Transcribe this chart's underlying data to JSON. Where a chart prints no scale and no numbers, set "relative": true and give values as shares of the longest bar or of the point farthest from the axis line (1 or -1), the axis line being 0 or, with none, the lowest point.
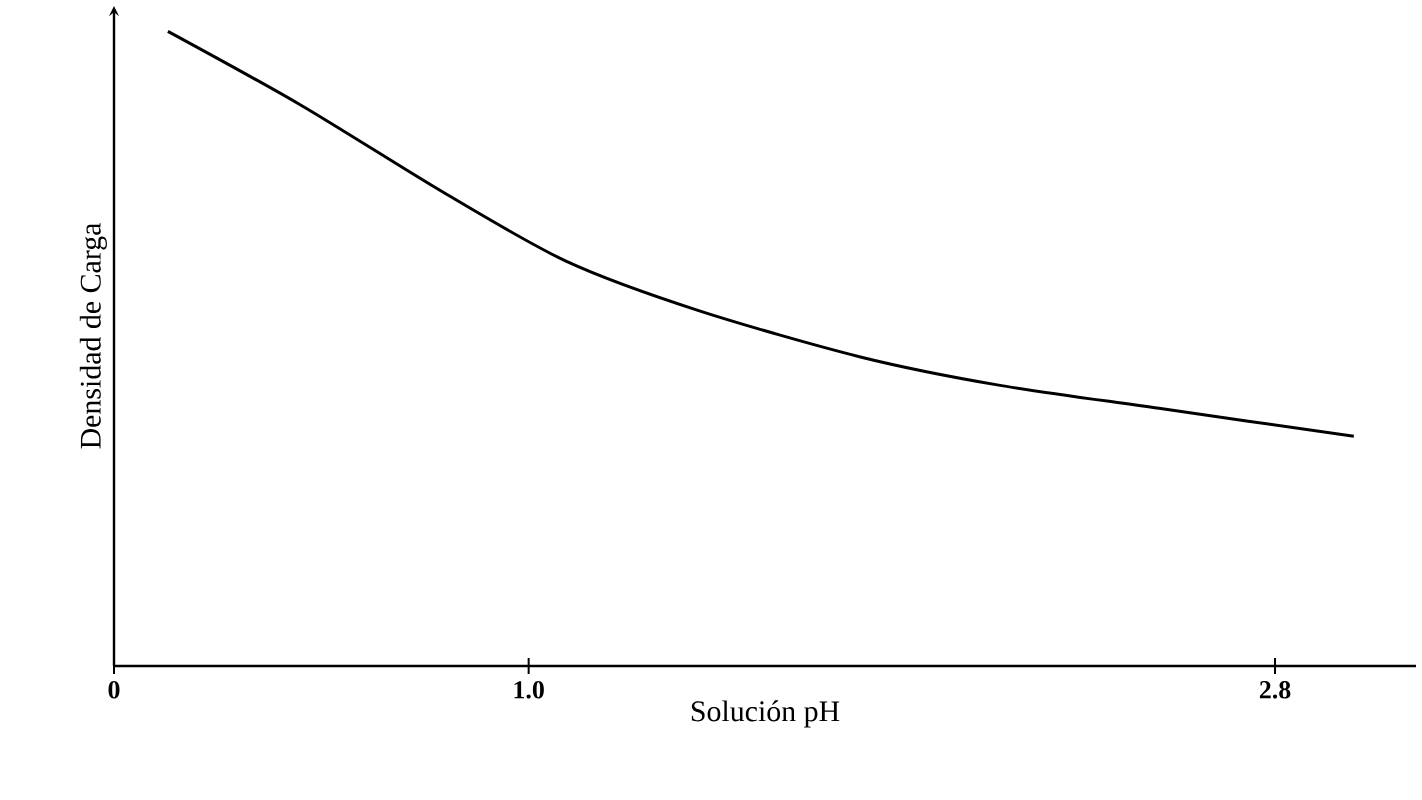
{
  "chart_data": {
    "type": "line",
    "xlabel": "Solución pH",
    "ylabel": "Densidad de Carga",
    "relative": true,
    "xlim": [
      0,
      3.14
    ],
    "xticks": [
      0,
      {
        "value": 1,
        "label": "1.0"
      },
      {
        "value": 2.8,
        "label": "2.8"
      }
    ],
    "x": [
      0.13,
      0.45,
      0.79,
      1.09,
      1.41,
      1.8,
      2.13,
      2.52,
      2.99
    ],
    "series": [
      {
        "color": "#000000",
        "values": [
          1.0,
          0.884,
          0.748,
          0.638,
          0.56,
          0.487,
          0.443,
          0.406,
          0.362
        ]
      }
    ],
    "marker": "none",
    "line_style": "solid"
  }
}
